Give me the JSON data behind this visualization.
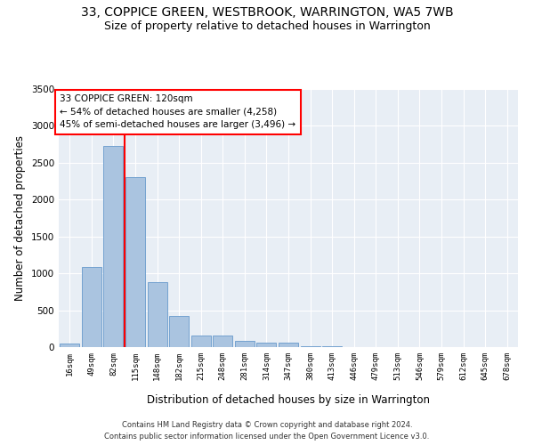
{
  "title1": "33, COPPICE GREEN, WESTBROOK, WARRINGTON, WA5 7WB",
  "title2": "Size of property relative to detached houses in Warrington",
  "xlabel": "Distribution of detached houses by size in Warrington",
  "ylabel": "Number of detached properties",
  "bin_labels": [
    "16sqm",
    "49sqm",
    "82sqm",
    "115sqm",
    "148sqm",
    "182sqm",
    "215sqm",
    "248sqm",
    "281sqm",
    "314sqm",
    "347sqm",
    "380sqm",
    "413sqm",
    "446sqm",
    "479sqm",
    "513sqm",
    "546sqm",
    "579sqm",
    "612sqm",
    "645sqm",
    "678sqm"
  ],
  "bar_values": [
    50,
    1090,
    2730,
    2310,
    880,
    420,
    155,
    155,
    90,
    65,
    55,
    10,
    10,
    5,
    2,
    1,
    1,
    0,
    0,
    0,
    0
  ],
  "bar_color": "#aac4e0",
  "bar_edge_color": "#6699cc",
  "vline_x": 2.5,
  "annotation_text": "33 COPPICE GREEN: 120sqm\n← 54% of detached houses are smaller (4,258)\n45% of semi-detached houses are larger (3,496) →",
  "annotation_box_color": "white",
  "annotation_edge_color": "red",
  "vline_color": "red",
  "ylim": [
    0,
    3500
  ],
  "yticks": [
    0,
    500,
    1000,
    1500,
    2000,
    2500,
    3000,
    3500
  ],
  "background_color": "#e8eef5",
  "footer_line1": "Contains HM Land Registry data © Crown copyright and database right 2024.",
  "footer_line2": "Contains public sector information licensed under the Open Government Licence v3.0.",
  "title1_fontsize": 10,
  "title2_fontsize": 9,
  "xlabel_fontsize": 8.5,
  "ylabel_fontsize": 8.5,
  "annotation_fontsize": 7.5
}
